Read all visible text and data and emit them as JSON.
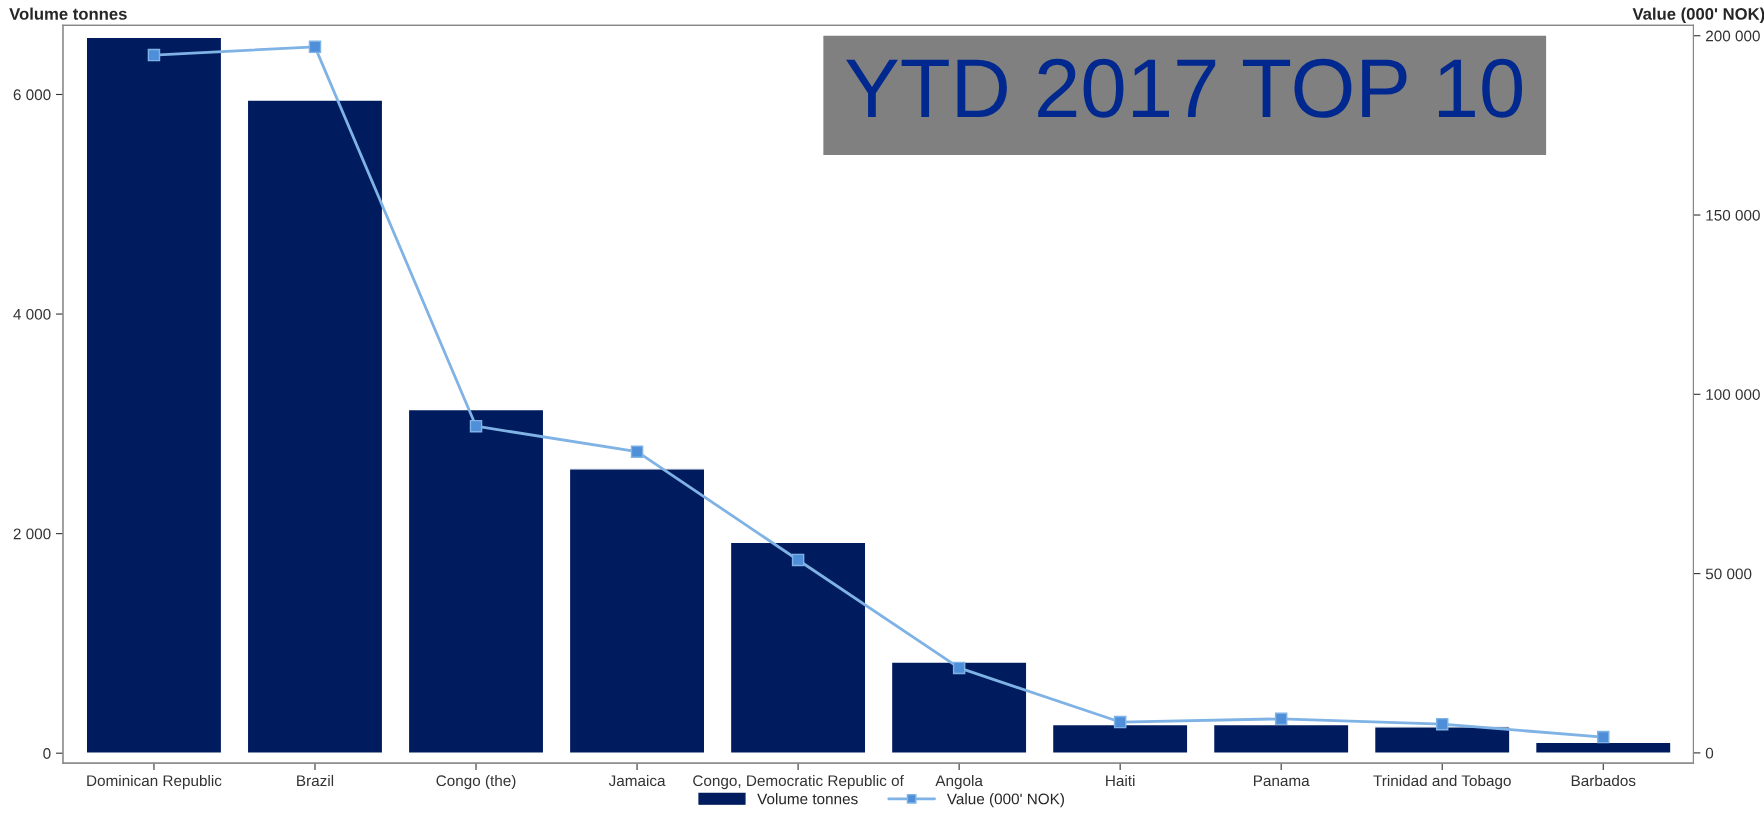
{
  "chart_data": {
    "type": "bar",
    "title": "YTD 2017 TOP 10",
    "ylabel": "Volume tonnes",
    "y2label": "Value (000' NOK)",
    "categories": [
      "Dominican Republic",
      "Brazil",
      "Congo (the)",
      "Jamaica",
      "Congo, Democratic Republic of",
      "Angola",
      "Haiti",
      "Panama",
      "Trinidad and Tobago",
      "Barbados"
    ],
    "series": [
      {
        "name": "Volume tonnes",
        "color": "#001c5e",
        "values": [
          6520,
          5950,
          3130,
          2590,
          1920,
          830,
          260,
          260,
          240,
          100
        ]
      },
      {
        "name": "Value (000' NOK)",
        "type": "line",
        "axis": "y2",
        "color": "#7fb2e5",
        "marker": "square",
        "values": [
          194600,
          196900,
          91100,
          84000,
          53800,
          23700,
          8600,
          9500,
          8000,
          4400
        ]
      }
    ],
    "ylim": [
      -90,
      6630
    ],
    "yticks": [
      0,
      {
        "value": 2000,
        "label": "2 000"
      },
      {
        "value": 4000,
        "label": "4 000"
      },
      {
        "value": 6000,
        "label": "6 000"
      }
    ],
    "y2lim": [
      -2840,
      202900
    ],
    "y2ticks": [
      0,
      {
        "value": 50000,
        "label": "50 000"
      },
      {
        "value": 100000,
        "label": "100 000"
      },
      {
        "value": 150000,
        "label": "150 000"
      },
      {
        "value": 200000,
        "label": "200 000"
      }
    ],
    "grid": false,
    "legend": "bottom"
  }
}
